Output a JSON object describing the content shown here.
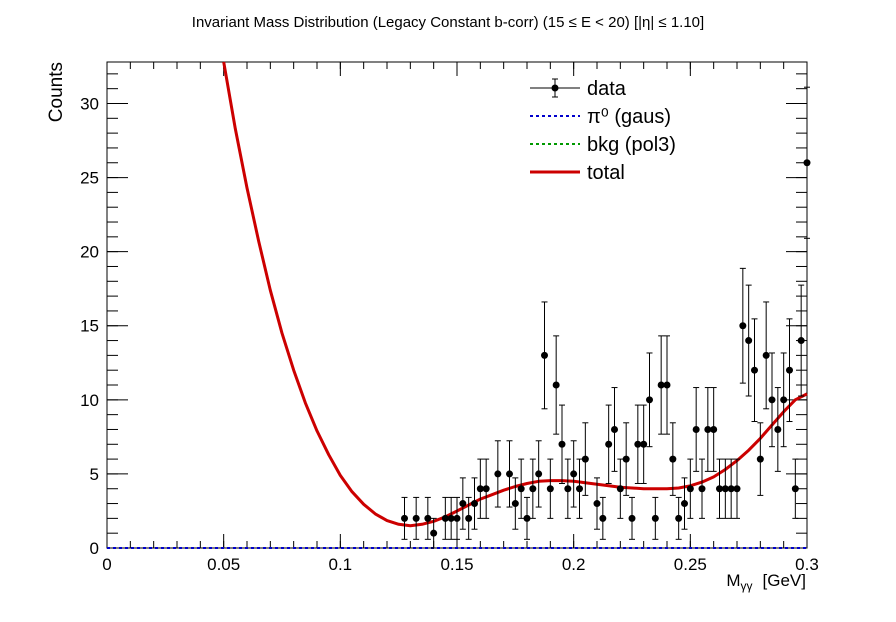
{
  "chart_data": {
    "type": "scatter",
    "title": "Invariant Mass Distribution (Legacy Constant b-corr)   (15 ≤ E < 20)   [|η| ≤ 1.10]",
    "xlabel": "M",
    "xlabel_sub": "γγ",
    "xlabel_unit": "[GeV]",
    "ylabel": "Counts",
    "xlim": [
      0,
      0.3
    ],
    "ylim": [
      0,
      32.8
    ],
    "x_ticks": [
      {
        "v": 0,
        "label": "0"
      },
      {
        "v": 0.05,
        "label": "0.05"
      },
      {
        "v": 0.1,
        "label": "0.1"
      },
      {
        "v": 0.15,
        "label": "0.15"
      },
      {
        "v": 0.2,
        "label": "0.2"
      },
      {
        "v": 0.25,
        "label": "0.25"
      },
      {
        "v": 0.3,
        "label": "0.3"
      }
    ],
    "y_ticks": [
      {
        "v": 0,
        "label": "0"
      },
      {
        "v": 5,
        "label": "5"
      },
      {
        "v": 10,
        "label": "10"
      },
      {
        "v": 15,
        "label": "15"
      },
      {
        "v": 20,
        "label": "20"
      },
      {
        "v": 25,
        "label": "25"
      },
      {
        "v": 30,
        "label": "30"
      }
    ],
    "legend": {
      "position": "top-right",
      "entries": [
        {
          "key": "data",
          "label": "data",
          "style": "marker",
          "color": "#000000"
        },
        {
          "key": "signal",
          "label": "π⁰ (gaus)",
          "style": "dotted",
          "color": "#0000cc"
        },
        {
          "key": "bkg",
          "label": "bkg (pol3)",
          "style": "dotted",
          "color": "#009900"
        },
        {
          "key": "total",
          "label": "total",
          "style": "solid",
          "color": "#cc0000"
        }
      ]
    },
    "data_points": [
      {
        "x": 0.1275,
        "y": 2
      },
      {
        "x": 0.1325,
        "y": 2
      },
      {
        "x": 0.1375,
        "y": 2
      },
      {
        "x": 0.14,
        "y": 1
      },
      {
        "x": 0.145,
        "y": 2
      },
      {
        "x": 0.1475,
        "y": 2
      },
      {
        "x": 0.15,
        "y": 2
      },
      {
        "x": 0.1525,
        "y": 3
      },
      {
        "x": 0.155,
        "y": 2
      },
      {
        "x": 0.1575,
        "y": 3
      },
      {
        "x": 0.16,
        "y": 4
      },
      {
        "x": 0.1625,
        "y": 4
      },
      {
        "x": 0.1675,
        "y": 5
      },
      {
        "x": 0.1725,
        "y": 5
      },
      {
        "x": 0.175,
        "y": 3
      },
      {
        "x": 0.1775,
        "y": 4
      },
      {
        "x": 0.18,
        "y": 2
      },
      {
        "x": 0.1825,
        "y": 4
      },
      {
        "x": 0.185,
        "y": 5
      },
      {
        "x": 0.1875,
        "y": 13
      },
      {
        "x": 0.19,
        "y": 4
      },
      {
        "x": 0.1925,
        "y": 11
      },
      {
        "x": 0.195,
        "y": 7
      },
      {
        "x": 0.1975,
        "y": 4
      },
      {
        "x": 0.2,
        "y": 5
      },
      {
        "x": 0.2025,
        "y": 4
      },
      {
        "x": 0.205,
        "y": 6
      },
      {
        "x": 0.21,
        "y": 3
      },
      {
        "x": 0.2125,
        "y": 2
      },
      {
        "x": 0.215,
        "y": 7
      },
      {
        "x": 0.2175,
        "y": 8
      },
      {
        "x": 0.22,
        "y": 4
      },
      {
        "x": 0.2225,
        "y": 6
      },
      {
        "x": 0.225,
        "y": 2
      },
      {
        "x": 0.2275,
        "y": 7
      },
      {
        "x": 0.23,
        "y": 7
      },
      {
        "x": 0.2325,
        "y": 10
      },
      {
        "x": 0.235,
        "y": 2
      },
      {
        "x": 0.2375,
        "y": 11
      },
      {
        "x": 0.24,
        "y": 11
      },
      {
        "x": 0.2425,
        "y": 6
      },
      {
        "x": 0.245,
        "y": 2
      },
      {
        "x": 0.2475,
        "y": 3
      },
      {
        "x": 0.25,
        "y": 4
      },
      {
        "x": 0.2525,
        "y": 8
      },
      {
        "x": 0.255,
        "y": 4
      },
      {
        "x": 0.2575,
        "y": 8
      },
      {
        "x": 0.26,
        "y": 8
      },
      {
        "x": 0.2625,
        "y": 4
      },
      {
        "x": 0.265,
        "y": 4
      },
      {
        "x": 0.2675,
        "y": 4
      },
      {
        "x": 0.27,
        "y": 4
      },
      {
        "x": 0.2725,
        "y": 15
      },
      {
        "x": 0.275,
        "y": 14
      },
      {
        "x": 0.2775,
        "y": 12
      },
      {
        "x": 0.28,
        "y": 6
      },
      {
        "x": 0.2825,
        "y": 13
      },
      {
        "x": 0.285,
        "y": 10
      },
      {
        "x": 0.2875,
        "y": 8
      },
      {
        "x": 0.29,
        "y": 10
      },
      {
        "x": 0.2925,
        "y": 12
      },
      {
        "x": 0.295,
        "y": 4
      },
      {
        "x": 0.2975,
        "y": 14
      },
      {
        "x": 0.3,
        "y": 26
      }
    ],
    "total_curve": {
      "x": [
        0.05,
        0.055,
        0.06,
        0.065,
        0.07,
        0.075,
        0.08,
        0.085,
        0.09,
        0.095,
        0.1,
        0.105,
        0.11,
        0.115,
        0.12,
        0.125,
        0.13,
        0.135,
        0.14,
        0.145,
        0.15,
        0.155,
        0.16,
        0.165,
        0.17,
        0.175,
        0.18,
        0.185,
        0.19,
        0.195,
        0.2,
        0.205,
        0.21,
        0.215,
        0.22,
        0.225,
        0.23,
        0.235,
        0.24,
        0.245,
        0.25,
        0.255,
        0.26,
        0.265,
        0.27,
        0.275,
        0.28,
        0.285,
        0.29,
        0.295,
        0.3
      ],
      "y": [
        32.8,
        28.3,
        24.3,
        20.7,
        17.4,
        14.5,
        12.0,
        9.8,
        7.9,
        6.3,
        4.9,
        3.8,
        2.95,
        2.3,
        1.85,
        1.6,
        1.5,
        1.6,
        1.8,
        2.1,
        2.5,
        2.9,
        3.3,
        3.6,
        3.9,
        4.15,
        4.35,
        4.5,
        4.55,
        4.55,
        4.5,
        4.4,
        4.3,
        4.2,
        4.1,
        4.05,
        4.0,
        4.0,
        4.0,
        4.05,
        4.2,
        4.45,
        4.8,
        5.3,
        5.9,
        6.6,
        7.4,
        8.3,
        9.2,
        10.0,
        10.4
      ]
    },
    "signal_curve": {
      "x": [
        0,
        0.3
      ],
      "y": [
        0,
        0
      ]
    },
    "bkg_curve": {
      "x": [
        0,
        0.3
      ],
      "y": [
        0,
        0
      ]
    },
    "grid": false
  }
}
